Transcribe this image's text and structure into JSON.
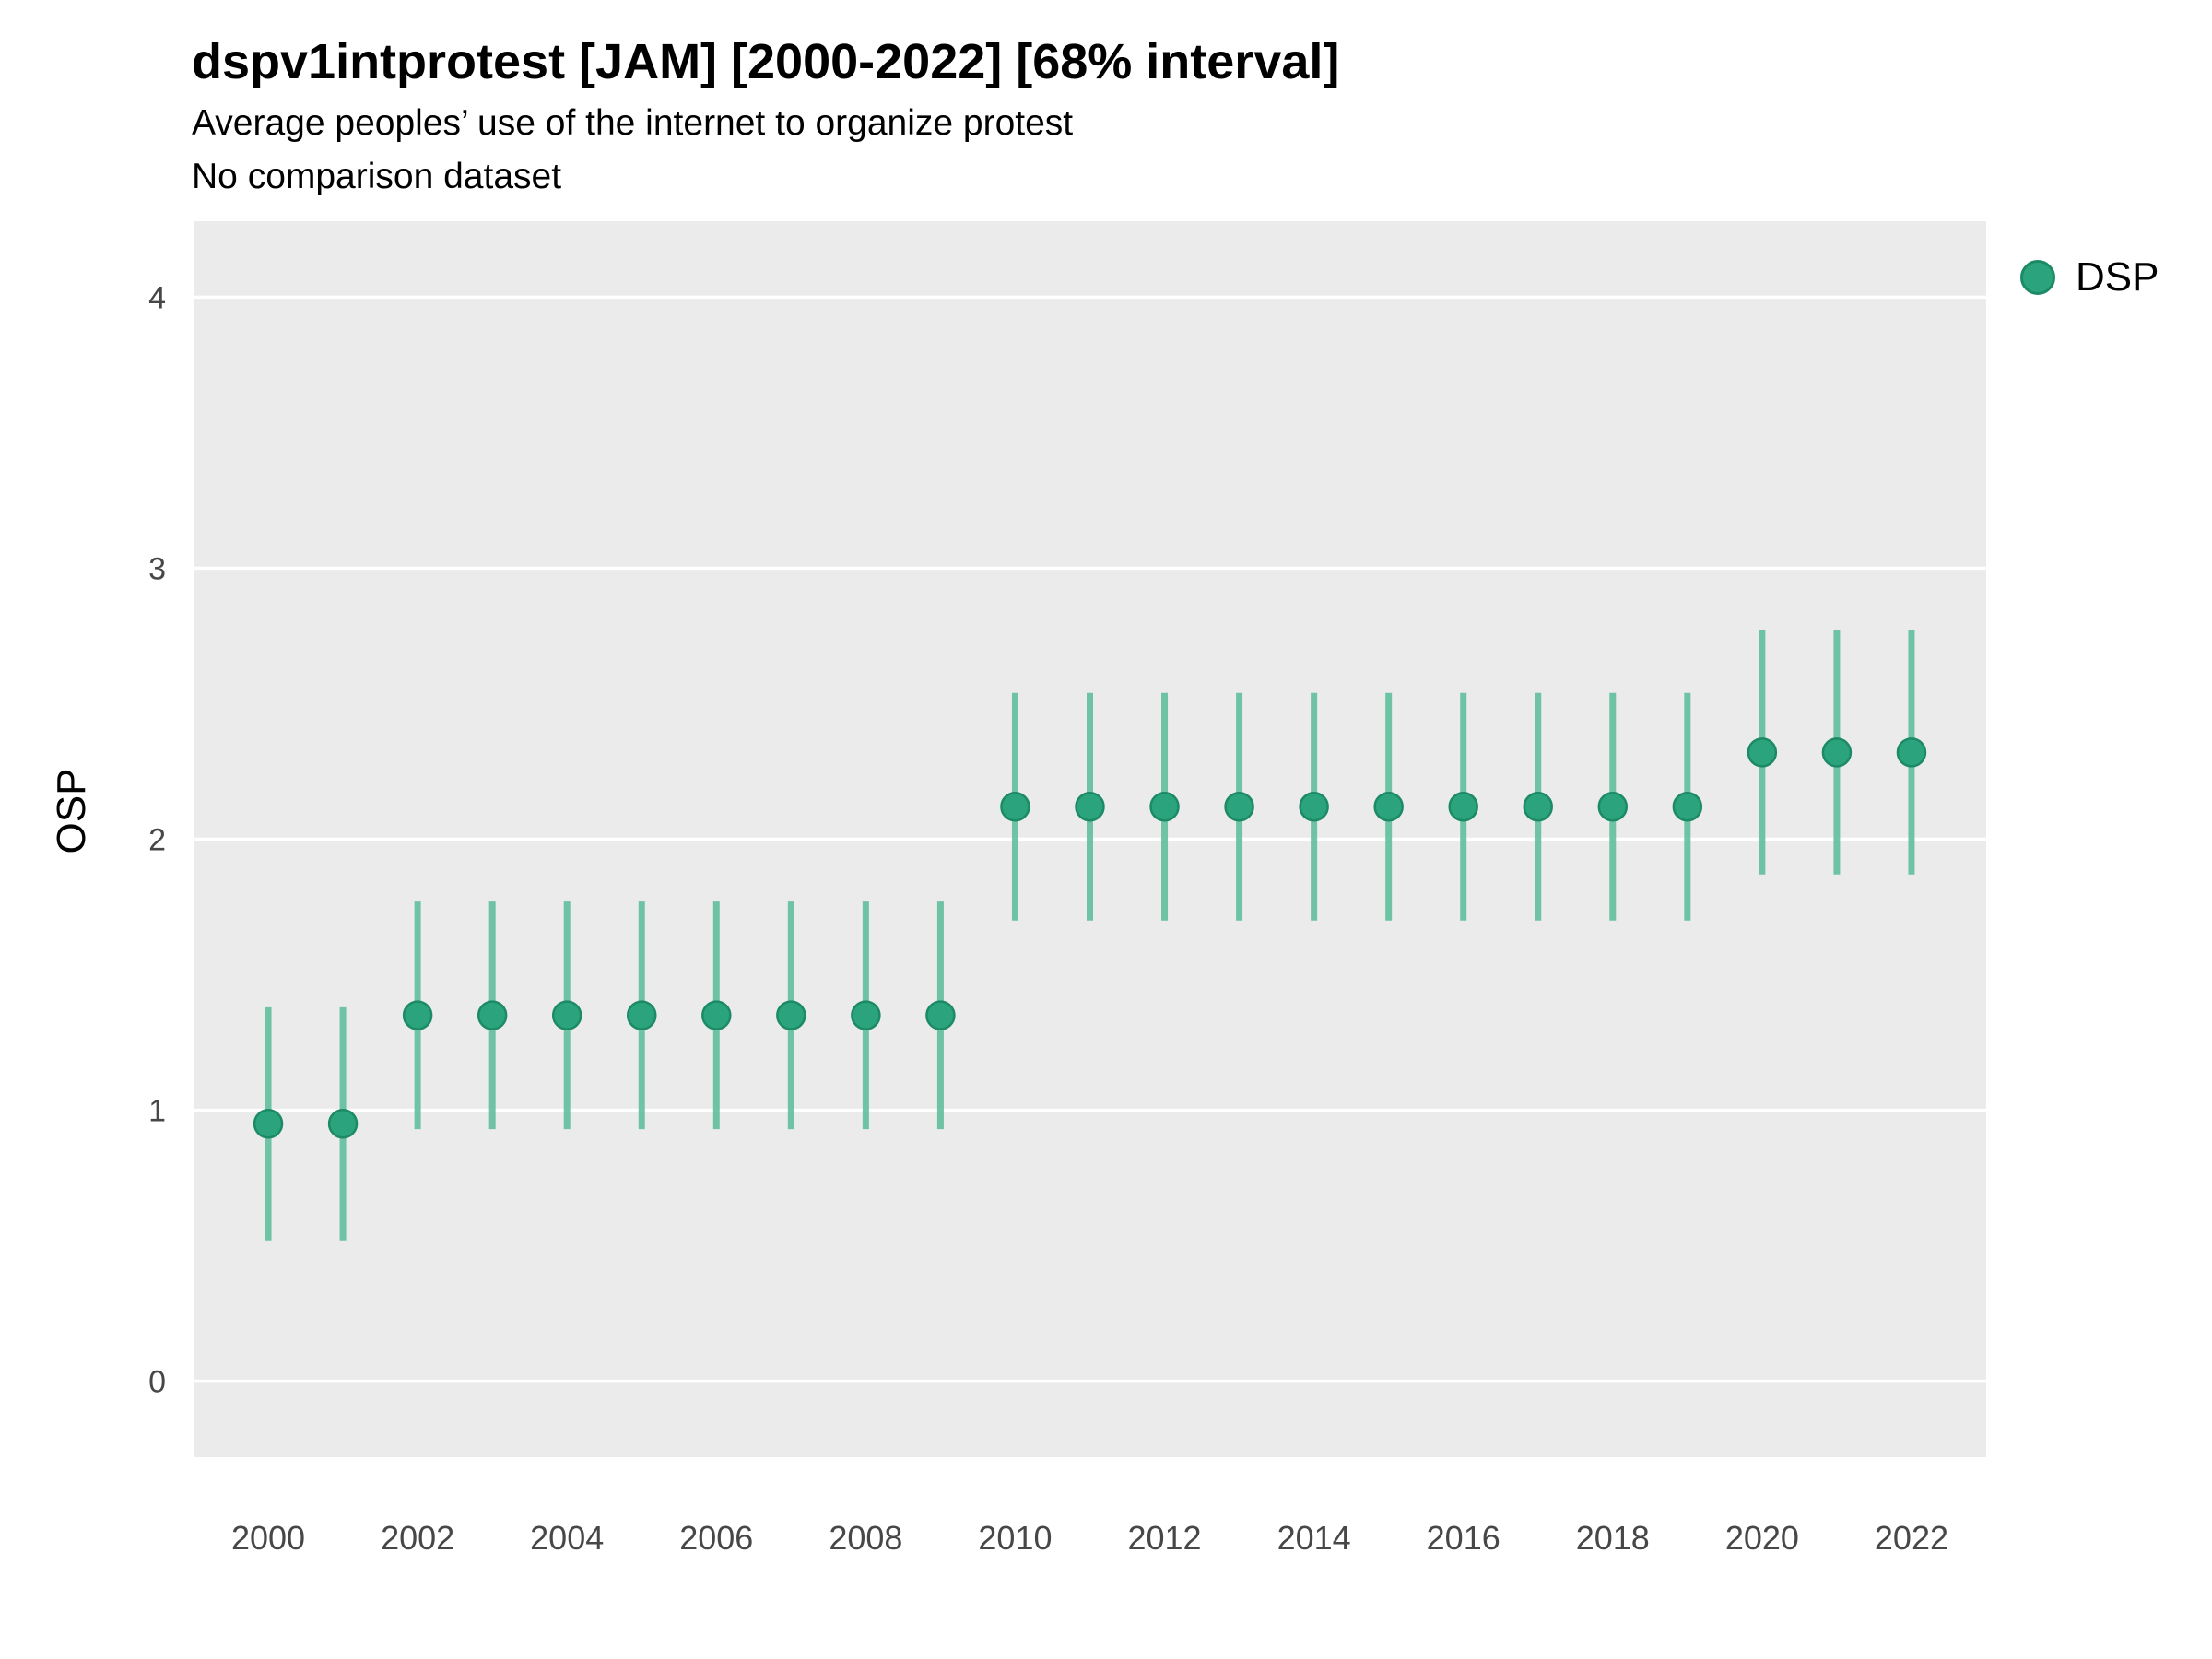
{
  "title": "dspv1intprotest [JAM] [2000-2022] [68% interval]",
  "subtitle": "Average peoples’ use of the internet to organize protest",
  "subtitle2": "No comparison dataset",
  "ylabel": "OSP",
  "legend": {
    "label": "DSP",
    "color": "#2ba47e",
    "stroke": "#1d8a66"
  },
  "colors": {
    "plot_background": "#ebebeb",
    "gridline": "#ffffff",
    "point_fill": "#2ba47e",
    "point_stroke": "#1d8a66",
    "interval_line": "#5fbf9c",
    "tick_label": "#474747"
  },
  "chart_data": {
    "type": "scatter",
    "title": "dspv1intprotest [JAM] [2000-2022] [68% interval]",
    "xlabel": "",
    "ylabel": "OSP",
    "grid": true,
    "legend_position": "right",
    "xlim": [
      1999,
      2023
    ],
    "ylim": [
      -0.28,
      4.28
    ],
    "xticks": [
      2000,
      2002,
      2004,
      2006,
      2008,
      2010,
      2012,
      2014,
      2016,
      2018,
      2020,
      2022
    ],
    "yticks": [
      0,
      1,
      2,
      3,
      4
    ],
    "series": [
      {
        "name": "DSP",
        "x": [
          2000,
          2001,
          2002,
          2003,
          2004,
          2005,
          2006,
          2007,
          2008,
          2009,
          2010,
          2011,
          2012,
          2013,
          2014,
          2015,
          2016,
          2017,
          2018,
          2019,
          2020,
          2021,
          2022
        ],
        "y": [
          0.95,
          0.95,
          1.35,
          1.35,
          1.35,
          1.35,
          1.35,
          1.35,
          1.35,
          1.35,
          2.12,
          2.12,
          2.12,
          2.12,
          2.12,
          2.12,
          2.12,
          2.12,
          2.12,
          2.12,
          2.32,
          2.32,
          2.32
        ],
        "ylow": [
          0.52,
          0.52,
          0.93,
          0.93,
          0.93,
          0.93,
          0.93,
          0.93,
          0.93,
          0.93,
          1.7,
          1.7,
          1.7,
          1.7,
          1.7,
          1.7,
          1.7,
          1.7,
          1.7,
          1.7,
          1.87,
          1.87,
          1.87
        ],
        "yhigh": [
          1.38,
          1.38,
          1.77,
          1.77,
          1.77,
          1.77,
          1.77,
          1.77,
          1.77,
          1.77,
          2.54,
          2.54,
          2.54,
          2.54,
          2.54,
          2.54,
          2.54,
          2.54,
          2.54,
          2.54,
          2.77,
          2.77,
          2.77
        ]
      }
    ]
  }
}
